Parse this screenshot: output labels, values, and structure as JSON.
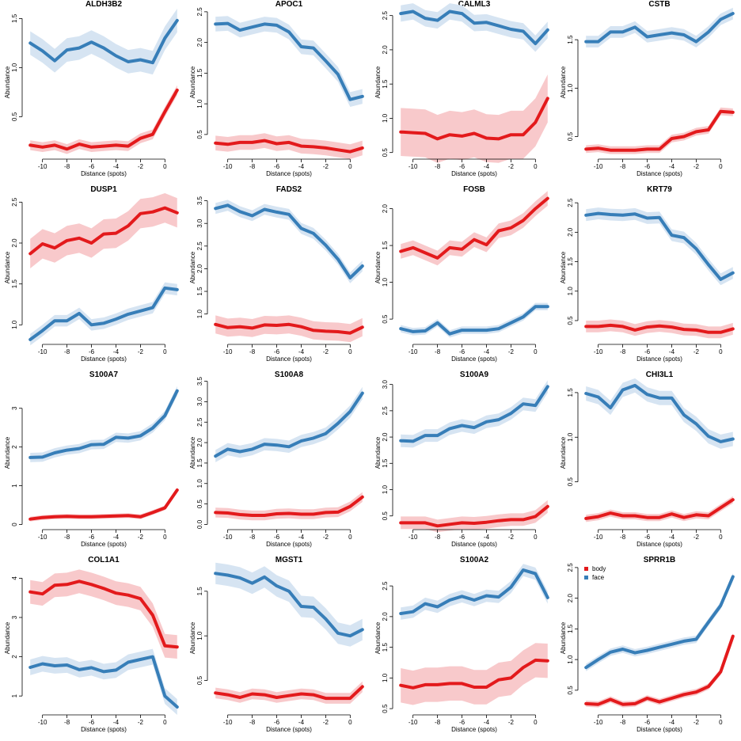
{
  "chart_data": {
    "type": "line",
    "xlabel": "Distance (spots)",
    "ylabel": "Abundance",
    "x": [
      -11,
      -10,
      -9,
      -8,
      -7,
      -6,
      -5,
      -4,
      -3,
      -2,
      -1,
      0,
      1
    ],
    "x_ticks": [
      -10,
      -8,
      -6,
      -4,
      -2,
      0
    ],
    "x_tick_labels": [
      "-10",
      "-8",
      "-6",
      "-4",
      "-2",
      "0"
    ],
    "xlim": [
      -11.4,
      1.4
    ],
    "legend": {
      "position": "top-left of last panel",
      "entries": [
        {
          "name": "body",
          "color": "#e31a1c"
        },
        {
          "name": "face",
          "color": "#377eb8"
        }
      ]
    },
    "series_colors": {
      "body": "#e31a1c",
      "body_band": "#f8c9cb",
      "face": "#377eb8",
      "face_band": "#d6e4f2"
    },
    "panels": [
      {
        "title": "ALDH3B2",
        "ylim": [
          0.1,
          1.6
        ],
        "yticks": [
          0.5,
          1.0,
          1.5
        ],
        "ytick_labels": [
          "0.5",
          "1.0",
          "1.5"
        ],
        "face": [
          1.25,
          1.17,
          1.07,
          1.18,
          1.2,
          1.26,
          1.2,
          1.12,
          1.06,
          1.08,
          1.05,
          1.3,
          1.48
        ],
        "face_sd": 0.12,
        "body": [
          0.21,
          0.19,
          0.21,
          0.17,
          0.22,
          0.19,
          0.2,
          0.21,
          0.2,
          0.28,
          0.32,
          0.55,
          0.77
        ],
        "body_sd": 0.05
      },
      {
        "title": "APOC1",
        "ylim": [
          0.15,
          2.55
        ],
        "yticks": [
          0.5,
          1.0,
          1.5,
          2.0,
          2.5
        ],
        "ytick_labels": [
          "0.5",
          "1.0",
          "1.5",
          "2.0",
          "2.5"
        ],
        "face": [
          2.3,
          2.31,
          2.2,
          2.25,
          2.3,
          2.28,
          2.17,
          1.93,
          1.91,
          1.7,
          1.48,
          1.07,
          1.12
        ],
        "face_sd": 0.12,
        "body": [
          0.36,
          0.34,
          0.37,
          0.37,
          0.4,
          0.35,
          0.37,
          0.31,
          0.3,
          0.28,
          0.25,
          0.22,
          0.28
        ],
        "body_sd": 0.12
      },
      {
        "title": "CALML3",
        "ylim": [
          0.45,
          2.6
        ],
        "yticks": [
          0.5,
          1.0,
          1.5,
          2.0,
          2.5
        ],
        "ytick_labels": [
          "0.5",
          "1.0",
          "1.5",
          "2.0",
          "2.5"
        ],
        "face": [
          2.53,
          2.56,
          2.46,
          2.43,
          2.56,
          2.53,
          2.39,
          2.4,
          2.35,
          2.3,
          2.27,
          2.09,
          2.29
        ],
        "face_sd": 0.12,
        "body": [
          0.8,
          0.79,
          0.78,
          0.7,
          0.76,
          0.74,
          0.78,
          0.71,
          0.7,
          0.76,
          0.76,
          0.94,
          1.29
        ],
        "body_sd": 0.35
      },
      {
        "title": "CSTB",
        "ylim": [
          0.3,
          1.82
        ],
        "yticks": [
          0.5,
          1.0,
          1.5
        ],
        "ytick_labels": [
          "0.5",
          "1.0",
          "1.5"
        ],
        "face": [
          1.48,
          1.48,
          1.58,
          1.58,
          1.63,
          1.53,
          1.55,
          1.57,
          1.55,
          1.48,
          1.58,
          1.71,
          1.77
        ],
        "face_sd": 0.06,
        "body": [
          0.37,
          0.38,
          0.36,
          0.36,
          0.36,
          0.37,
          0.37,
          0.48,
          0.5,
          0.55,
          0.57,
          0.76,
          0.75
        ],
        "body_sd": 0.04
      },
      {
        "title": "DUSP1",
        "ylim": [
          0.8,
          2.6
        ],
        "yticks": [
          1.0,
          1.5,
          2.0,
          2.5
        ],
        "ytick_labels": [
          "1.0",
          "1.5",
          "2.0",
          "2.5"
        ],
        "face": [
          0.82,
          0.93,
          1.05,
          1.05,
          1.14,
          1.0,
          1.02,
          1.07,
          1.13,
          1.17,
          1.21,
          1.45,
          1.43
        ],
        "face_sd": 0.07,
        "body": [
          1.87,
          1.99,
          1.94,
          2.03,
          2.06,
          2.0,
          2.11,
          2.12,
          2.21,
          2.36,
          2.38,
          2.43,
          2.37
        ],
        "body_sd": 0.18
      },
      {
        "title": "FADS2",
        "ylim": [
          0.4,
          3.65
        ],
        "yticks": [
          1.0,
          1.5,
          2.0,
          2.5,
          3.0,
          3.5
        ],
        "ytick_labels": [
          "1.0",
          "1.5",
          "2.0",
          "2.5",
          "3.0",
          "3.5"
        ],
        "face": [
          3.33,
          3.4,
          3.26,
          3.17,
          3.31,
          3.25,
          3.2,
          2.89,
          2.78,
          2.52,
          2.21,
          1.8,
          2.06
        ],
        "face_sd": 0.12,
        "body": [
          0.77,
          0.7,
          0.72,
          0.69,
          0.76,
          0.75,
          0.77,
          0.72,
          0.64,
          0.62,
          0.61,
          0.58,
          0.71
        ],
        "body_sd": 0.2
      },
      {
        "title": "FOSB",
        "ylim": [
          0.2,
          2.2
        ],
        "yticks": [
          0.5,
          1.0,
          1.5,
          2.0
        ],
        "ytick_labels": [
          "0.5",
          "1.0",
          "1.5",
          "2.0"
        ],
        "face": [
          0.37,
          0.33,
          0.34,
          0.45,
          0.3,
          0.35,
          0.35,
          0.35,
          0.37,
          0.45,
          0.53,
          0.67,
          0.67
        ],
        "face_sd": 0.05,
        "body": [
          1.42,
          1.47,
          1.4,
          1.33,
          1.47,
          1.45,
          1.58,
          1.51,
          1.7,
          1.74,
          1.84,
          2.0,
          2.14
        ],
        "body_sd": 0.1
      },
      {
        "title": "KRT79",
        "ylim": [
          0.15,
          2.65
        ],
        "yticks": [
          0.5,
          1.0,
          1.5,
          2.0,
          2.5
        ],
        "ytick_labels": [
          "0.5",
          "1.0",
          "1.5",
          "2.0",
          "2.5"
        ],
        "face": [
          2.29,
          2.32,
          2.3,
          2.29,
          2.31,
          2.24,
          2.25,
          1.95,
          1.91,
          1.72,
          1.45,
          1.2,
          1.31
        ],
        "face_sd": 0.1,
        "body": [
          0.4,
          0.4,
          0.42,
          0.4,
          0.34,
          0.39,
          0.41,
          0.39,
          0.35,
          0.34,
          0.3,
          0.3,
          0.36
        ],
        "body_sd": 0.1
      },
      {
        "title": "S100A7",
        "ylim": [
          -0.05,
          3.75
        ],
        "yticks": [
          0,
          1,
          2,
          3
        ],
        "ytick_labels": [
          "0",
          "1",
          "2",
          "3"
        ],
        "face": [
          1.73,
          1.74,
          1.85,
          1.92,
          1.96,
          2.06,
          2.07,
          2.25,
          2.23,
          2.29,
          2.49,
          2.81,
          3.45
        ],
        "face_sd": 0.12,
        "body": [
          0.14,
          0.18,
          0.2,
          0.21,
          0.2,
          0.2,
          0.21,
          0.22,
          0.23,
          0.2,
          0.31,
          0.43,
          0.89
        ],
        "body_sd": 0.06
      },
      {
        "title": "S100A8",
        "ylim": [
          -0.05,
          3.55
        ],
        "yticks": [
          0.0,
          0.5,
          1.0,
          1.5,
          2.0,
          2.5,
          3.0,
          3.5
        ],
        "ytick_labels": [
          "0.0",
          "0.5",
          "1.0",
          "1.5",
          "2.0",
          "2.5",
          "3.0",
          "3.5"
        ],
        "face": [
          1.67,
          1.84,
          1.78,
          1.84,
          1.96,
          1.94,
          1.9,
          2.04,
          2.11,
          2.22,
          2.47,
          2.76,
          3.21
        ],
        "face_sd": 0.15,
        "body": [
          0.29,
          0.28,
          0.24,
          0.22,
          0.22,
          0.26,
          0.27,
          0.25,
          0.25,
          0.29,
          0.3,
          0.44,
          0.67
        ],
        "body_sd": 0.12
      },
      {
        "title": "S100A9",
        "ylim": [
          0.3,
          3.1
        ],
        "yticks": [
          0.5,
          1.0,
          1.5,
          2.0,
          2.5,
          3.0
        ],
        "ytick_labels": [
          "0.5",
          "1.0",
          "1.5",
          "2.0",
          "2.5",
          "3.0"
        ],
        "face": [
          1.93,
          1.92,
          2.03,
          2.03,
          2.16,
          2.22,
          2.18,
          2.29,
          2.33,
          2.45,
          2.63,
          2.6,
          2.96
        ],
        "face_sd": 0.12,
        "body": [
          0.37,
          0.37,
          0.37,
          0.31,
          0.34,
          0.37,
          0.36,
          0.38,
          0.41,
          0.43,
          0.43,
          0.49,
          0.68
        ],
        "body_sd": 0.12
      },
      {
        "title": "CHI3L1",
        "ylim": [
          0.0,
          1.65
        ],
        "yticks": [
          0.5,
          1.0,
          1.5
        ],
        "ytick_labels": [
          "0.5",
          "1.0",
          "1.5"
        ],
        "face": [
          1.49,
          1.45,
          1.33,
          1.53,
          1.58,
          1.48,
          1.44,
          1.44,
          1.25,
          1.15,
          1.01,
          0.95,
          0.98
        ],
        "face_sd": 0.08,
        "body": [
          0.09,
          0.11,
          0.15,
          0.12,
          0.12,
          0.1,
          0.1,
          0.14,
          0.1,
          0.13,
          0.12,
          0.21,
          0.3
        ],
        "body_sd": 0.04
      },
      {
        "title": "COL1A1",
        "ylim": [
          0.6,
          4.35
        ],
        "yticks": [
          1,
          2,
          3,
          4
        ],
        "ytick_labels": [
          "1",
          "2",
          "3",
          "4"
        ],
        "face": [
          1.73,
          1.82,
          1.77,
          1.79,
          1.67,
          1.72,
          1.62,
          1.66,
          1.86,
          1.93,
          2.0,
          1.0,
          0.72
        ],
        "face_sd": 0.2,
        "body": [
          3.65,
          3.6,
          3.82,
          3.84,
          3.92,
          3.84,
          3.74,
          3.62,
          3.57,
          3.48,
          3.06,
          2.28,
          2.25
        ],
        "body_sd": 0.3
      },
      {
        "title": "MGST1",
        "ylim": [
          0.15,
          1.8
        ],
        "yticks": [
          0.5,
          1.0,
          1.5
        ],
        "ytick_labels": [
          "0.5",
          "1.0",
          "1.5"
        ],
        "face": [
          1.7,
          1.68,
          1.65,
          1.59,
          1.66,
          1.56,
          1.5,
          1.33,
          1.32,
          1.19,
          1.03,
          1.0,
          1.07
        ],
        "face_sd": 0.12,
        "body": [
          0.36,
          0.34,
          0.31,
          0.35,
          0.34,
          0.31,
          0.33,
          0.35,
          0.34,
          0.3,
          0.3,
          0.3,
          0.43
        ],
        "body_sd": 0.06
      },
      {
        "title": "S100A2",
        "ylim": [
          0.45,
          2.85
        ],
        "yticks": [
          0.5,
          1.0,
          1.5,
          2.0,
          2.5
        ],
        "ytick_labels": [
          "0.5",
          "1.0",
          "1.5",
          "2.0",
          "2.5"
        ],
        "face": [
          2.05,
          2.08,
          2.21,
          2.16,
          2.27,
          2.33,
          2.27,
          2.34,
          2.32,
          2.48,
          2.76,
          2.7,
          2.31
        ],
        "face_sd": 0.1,
        "body": [
          0.88,
          0.84,
          0.89,
          0.89,
          0.91,
          0.91,
          0.85,
          0.85,
          0.97,
          1.0,
          1.17,
          1.29,
          1.28
        ],
        "body_sd": 0.28
      },
      {
        "title": "SPRR1B",
        "ylim": [
          0.15,
          2.55
        ],
        "yticks": [
          0.5,
          1.0,
          1.5,
          2.0,
          2.5
        ],
        "ytick_labels": [
          "0.5",
          "1.0",
          "1.5",
          "2.0",
          "2.5"
        ],
        "face": [
          0.87,
          1.0,
          1.12,
          1.17,
          1.11,
          1.15,
          1.2,
          1.25,
          1.3,
          1.33,
          1.61,
          1.88,
          2.35
        ],
        "face_sd": 0.06,
        "body": [
          0.28,
          0.27,
          0.35,
          0.27,
          0.28,
          0.37,
          0.31,
          0.37,
          0.43,
          0.47,
          0.56,
          0.8,
          1.38
        ],
        "body_sd": 0.05
      }
    ]
  }
}
